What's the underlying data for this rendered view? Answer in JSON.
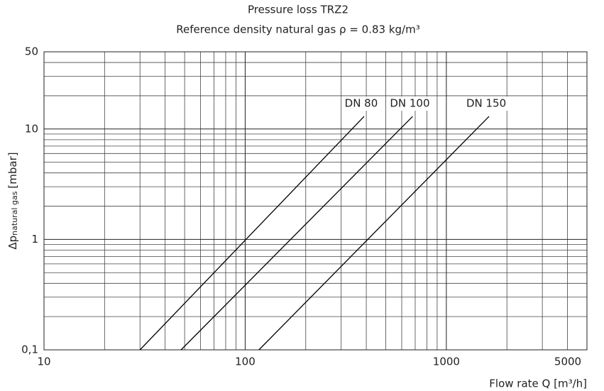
{
  "chart_data": {
    "type": "line",
    "title": "Pressure loss TRZ2",
    "subtitle": "Reference density natural gas ρ = 0.83 kg/m³",
    "xlabel": "Flow rate Q [m³/h]",
    "ylabel": {
      "symbol": "Δp",
      "subscript": "natural gas",
      "unit": "[mbar]"
    },
    "xlog": true,
    "ylog": true,
    "grid": true,
    "xlim": [
      10,
      5000
    ],
    "ylim": [
      0.1,
      50
    ],
    "xticks": [
      10,
      100,
      1000,
      5000
    ],
    "yticks": [
      {
        "value": 0.1,
        "label": "0,1"
      },
      1,
      10,
      50
    ],
    "series": [
      {
        "name": "DN 80",
        "color": "#000000",
        "x": [
          30,
          390
        ],
        "values": [
          0.1,
          13
        ]
      },
      {
        "name": "DN 100",
        "color": "#000000",
        "x": [
          48,
          680
        ],
        "values": [
          0.1,
          13
        ]
      },
      {
        "name": "DN 150",
        "color": "#000000",
        "x": [
          117,
          1630
        ],
        "values": [
          0.1,
          13
        ]
      }
    ]
  }
}
